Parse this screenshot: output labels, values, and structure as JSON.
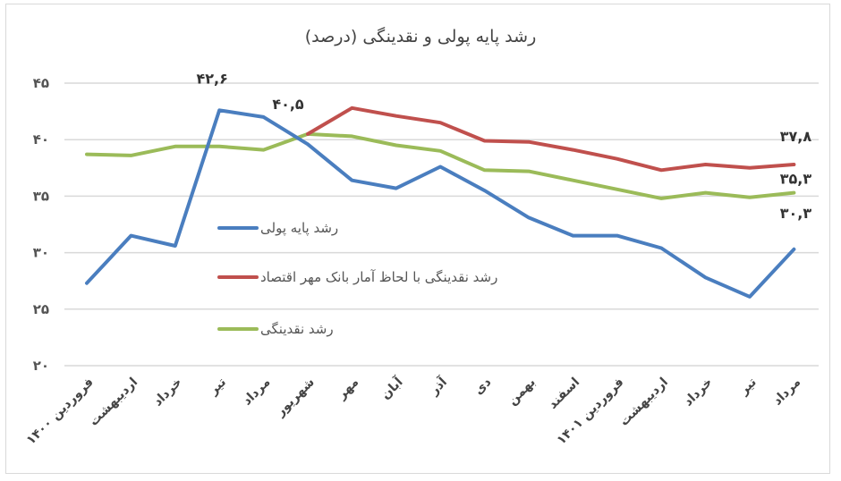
{
  "chart_data": {
    "type": "line",
    "title": "رشد پایه پولی و نقدینگی (درصد)",
    "xlabel": "",
    "ylabel": "",
    "ylim": [
      20,
      45
    ],
    "yticks": [
      "۲۰",
      "۲۵",
      "۳۰",
      "۳۵",
      "۴۰",
      "۴۵"
    ],
    "ytick_values": [
      20,
      25,
      30,
      35,
      40,
      45
    ],
    "grid": true,
    "legend_position": "inside-left",
    "categories": [
      "فروردین ۱۴۰۰",
      "اردیبهشت",
      "خرداد",
      "تیر",
      "مرداد",
      "شهریور",
      "مهر",
      "آبان",
      "آذر",
      "دی",
      "بهمن",
      "اسفند",
      "فروردین ۱۴۰۱",
      "اردیبهشت",
      "خرداد",
      "تیر",
      "مرداد"
    ],
    "series": [
      {
        "name": "رشد پایه پولی",
        "color": "#4a7ebf",
        "values": [
          27.3,
          31.5,
          30.6,
          42.6,
          42.0,
          39.6,
          36.4,
          35.7,
          37.6,
          35.5,
          33.1,
          31.5,
          31.5,
          30.4,
          27.8,
          26.1,
          30.3
        ]
      },
      {
        "name": "رشد نقدینگی با لحاظ آمار بانک مهر اقتصاد",
        "color": "#c0504d",
        "values": [
          null,
          null,
          null,
          null,
          null,
          40.5,
          42.8,
          42.1,
          41.5,
          39.9,
          39.8,
          39.1,
          38.3,
          37.3,
          37.8,
          37.5,
          37.8
        ]
      },
      {
        "name": "رشد نقدینگی",
        "color": "#9bbb59",
        "values": [
          38.7,
          38.6,
          39.4,
          39.4,
          39.1,
          40.5,
          40.3,
          39.5,
          39.0,
          37.3,
          37.2,
          36.4,
          35.6,
          34.8,
          35.3,
          34.9,
          35.3
        ]
      }
    ],
    "annotations": [
      {
        "text": "۴۲,۶",
        "series": 0,
        "index": 3
      },
      {
        "text": "۴۰,۵",
        "series": 1,
        "index": 5
      },
      {
        "text": "۳۷,۸",
        "series": 1,
        "index": 16
      },
      {
        "text": "۳۵,۳",
        "series": 2,
        "index": 16
      },
      {
        "text": "۳۰,۳",
        "series": 0,
        "index": 16
      }
    ]
  }
}
